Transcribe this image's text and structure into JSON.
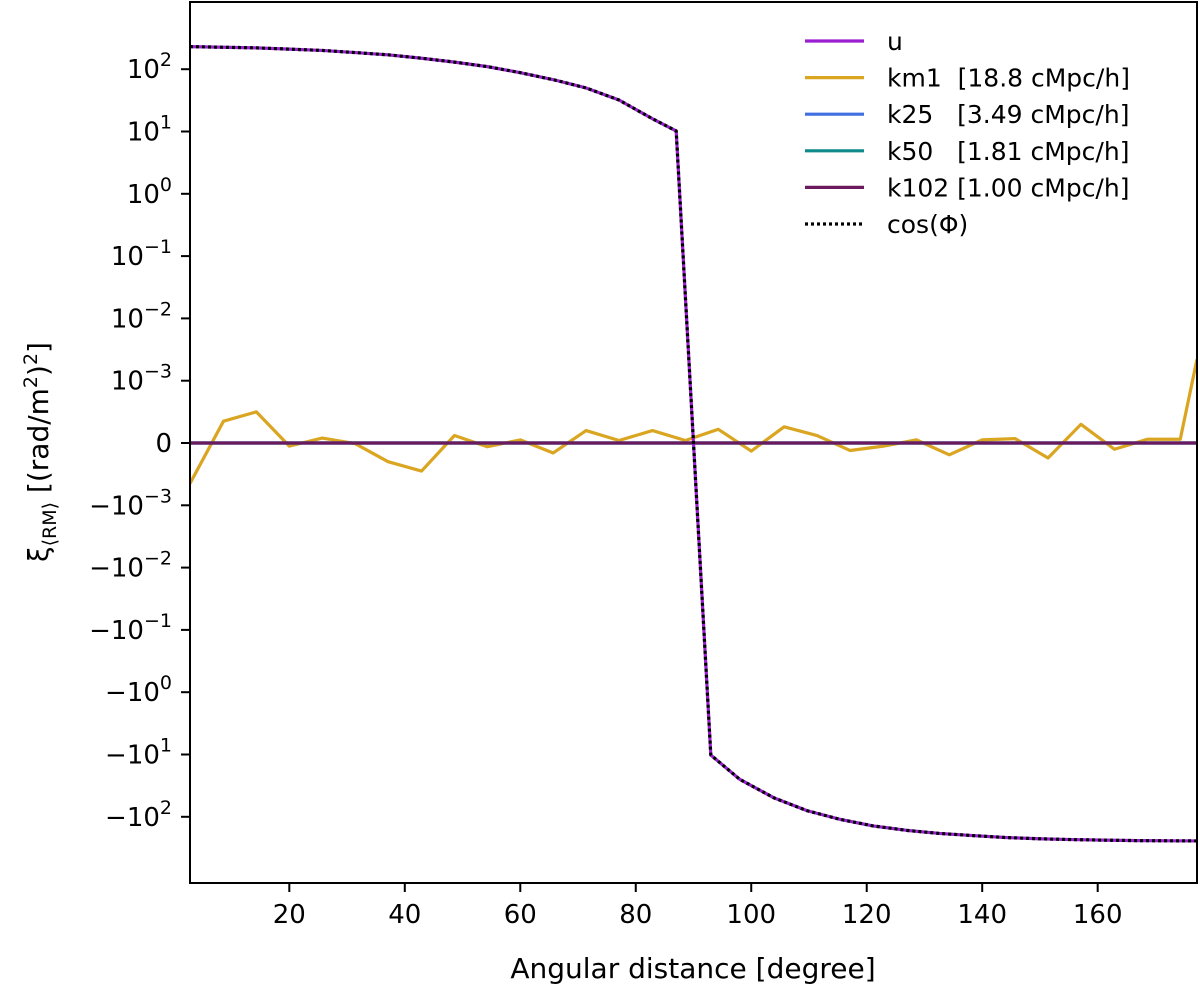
{
  "chart_data": {
    "type": "line",
    "title": "",
    "xlabel": "Angular distance [degree]",
    "ylabel_main": "ξ",
    "ylabel_sub": "⟨RM⟩",
    "ylabel_rest": " [(rad/m",
    "ylabel_sup1": "2",
    "ylabel_close": ")",
    "ylabel_sup2": "2",
    "ylabel_end": "]",
    "xlim": [
      2.8,
      177.2
    ],
    "x_ticks": [
      20,
      40,
      60,
      80,
      100,
      120,
      140,
      160
    ],
    "y_scale": "symlog",
    "y_linthresh": 0.001,
    "ylim": [
      -300,
      300
    ],
    "y_ticks": [
      {
        "value": 100,
        "base": "10",
        "exp": "2",
        "neg": false
      },
      {
        "value": 10,
        "base": "10",
        "exp": "1",
        "neg": false
      },
      {
        "value": 1,
        "base": "10",
        "exp": "0",
        "neg": false
      },
      {
        "value": 0.1,
        "base": "10",
        "exp": "−1",
        "neg": false
      },
      {
        "value": 0.01,
        "base": "10",
        "exp": "−2",
        "neg": false
      },
      {
        "value": 0.001,
        "base": "10",
        "exp": "−3",
        "neg": false
      },
      {
        "value": 0,
        "base": "0",
        "exp": "",
        "neg": false
      },
      {
        "value": -0.001,
        "base": "10",
        "exp": "−3",
        "neg": true
      },
      {
        "value": -0.01,
        "base": "10",
        "exp": "−2",
        "neg": true
      },
      {
        "value": -0.1,
        "base": "10",
        "exp": "−1",
        "neg": true
      },
      {
        "value": -1,
        "base": "10",
        "exp": "0",
        "neg": true
      },
      {
        "value": -10,
        "base": "10",
        "exp": "1",
        "neg": true
      },
      {
        "value": -100,
        "base": "10",
        "exp": "2",
        "neg": true
      }
    ],
    "grid": false,
    "legend_position": "top-right",
    "x": [
      2.86,
      8.57,
      14.29,
      20.0,
      25.71,
      31.43,
      37.14,
      42.86,
      48.57,
      54.29,
      60.0,
      65.71,
      71.43,
      77.14,
      82.86,
      88.57,
      94.29,
      100.0,
      105.71,
      111.43,
      117.14,
      122.86,
      128.57,
      134.29,
      140.0,
      145.71,
      151.43,
      157.14,
      162.86,
      168.57,
      174.29,
      177.14
    ],
    "series": [
      {
        "name": "u",
        "color": "#9a1fd1",
        "dash": "solid",
        "x": [
          2.8,
          8.6,
          14.3,
          20.0,
          25.7,
          31.4,
          37.1,
          42.9,
          48.6,
          54.3,
          60.0,
          65.7,
          71.4,
          77.1,
          82.9,
          87.0,
          93.0,
          98.0,
          104.0,
          109.7,
          115.4,
          121.1,
          126.9,
          132.6,
          138.3,
          144.0,
          149.7,
          155.4,
          161.1,
          166.9,
          172.6,
          177.2
        ],
        "values": [
          230,
          225,
          220,
          210,
          200,
          185,
          170,
          150,
          130,
          110,
          88,
          68,
          50,
          32,
          16,
          10.2,
          -10.2,
          -25,
          -50,
          -80,
          -110,
          -140,
          -165,
          -185,
          -200,
          -215,
          -225,
          -232,
          -237,
          -241,
          -243,
          -244
        ]
      },
      {
        "name": "km1  [18.8 cMpc/h]",
        "color": "#daa520",
        "dash": "solid",
        "x": [
          2.8,
          8.6,
          14.3,
          20.0,
          25.7,
          31.4,
          37.1,
          42.9,
          48.6,
          54.3,
          60.0,
          65.7,
          71.4,
          77.1,
          82.9,
          88.6,
          94.3,
          100.0,
          105.7,
          111.4,
          117.1,
          122.9,
          128.6,
          134.3,
          140.0,
          145.7,
          151.4,
          157.1,
          162.9,
          168.6,
          174.3,
          177.2
        ],
        "values": [
          -0.00065,
          0.00035,
          0.0005,
          -5e-05,
          8e-05,
          -1e-05,
          -0.0003,
          -0.00045,
          0.00012,
          -6e-05,
          5e-05,
          -0.00016,
          0.0002,
          4e-05,
          0.0002,
          4e-05,
          0.00022,
          -0.00013,
          0.00026,
          0.00012,
          -0.00012,
          -5e-05,
          5e-05,
          -0.00019,
          5e-05,
          7e-05,
          -0.00024,
          0.0003,
          -0.0001,
          6e-05,
          6e-05,
          0.0022
        ]
      },
      {
        "name": "k25   [3.49 cMpc/h]",
        "color": "#3f6fe0",
        "dash": "solid",
        "x": [
          2.8,
          177.2
        ],
        "values": [
          0,
          0
        ]
      },
      {
        "name": "k50   [1.81 cMpc/h]",
        "color": "#0f8a8a",
        "dash": "solid",
        "x": [
          2.8,
          177.2
        ],
        "values": [
          0,
          0
        ]
      },
      {
        "name": "k102 [1.00 cMpc/h]",
        "color": "#6b1a5e",
        "dash": "solid",
        "x": [
          2.8,
          177.2
        ],
        "values": [
          0,
          0
        ]
      },
      {
        "name": "cos(Φ)",
        "color": "#000000",
        "dash": "dotted",
        "x": [
          2.8,
          8.6,
          14.3,
          20.0,
          25.7,
          31.4,
          37.1,
          42.9,
          48.6,
          54.3,
          60.0,
          65.7,
          71.4,
          77.1,
          82.9,
          87.0,
          93.0,
          98.0,
          104.0,
          109.7,
          115.4,
          121.1,
          126.9,
          132.6,
          138.3,
          144.0,
          149.7,
          155.4,
          161.1,
          166.9,
          172.6,
          177.2
        ],
        "values": [
          230,
          225,
          220,
          210,
          200,
          185,
          170,
          150,
          130,
          110,
          88,
          68,
          50,
          32,
          16,
          10.2,
          -10.2,
          -25,
          -50,
          -80,
          -110,
          -140,
          -165,
          -185,
          -200,
          -215,
          -225,
          -232,
          -237,
          -241,
          -243,
          -244
        ]
      }
    ]
  }
}
